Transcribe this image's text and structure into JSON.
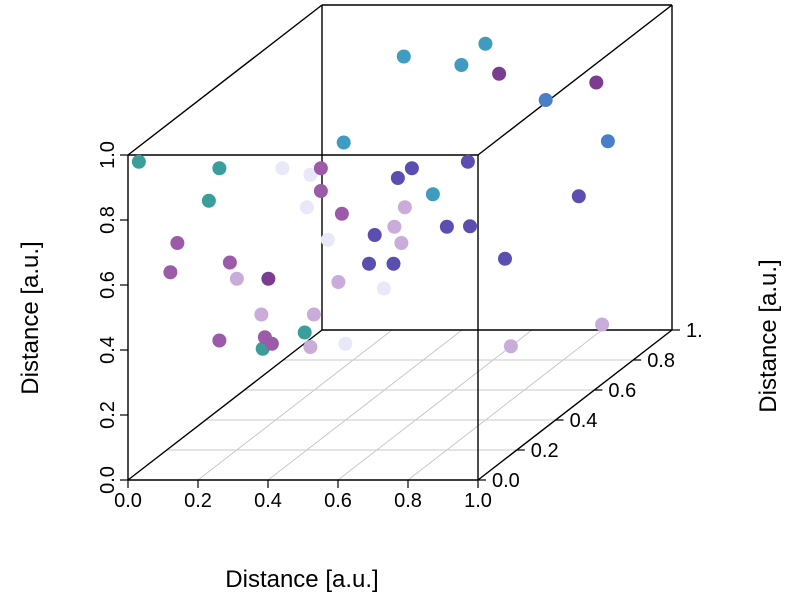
{
  "chart_data": {
    "type": "scatter",
    "dimensions": 3,
    "xlabel": "Distance [a.u.]",
    "ylabel": "Distance [a.u.]",
    "zlabel": "Distance [a.u.]",
    "xlim": [
      0,
      1
    ],
    "ylim": [
      0,
      1
    ],
    "zlim": [
      0,
      1
    ],
    "x_ticks": [
      "0.0",
      "0.2",
      "0.4",
      "0.6",
      "0.8",
      "1.0"
    ],
    "y_ticks": [
      "0.0",
      "0.2",
      "0.4",
      "0.6",
      "0.8",
      "1."
    ],
    "z_ticks": [
      "0.0",
      "0.2",
      "0.4",
      "0.6",
      "0.8",
      "1.0"
    ],
    "grid": true,
    "box": true,
    "color_scale": [
      "#e8e8f8",
      "#c9acda",
      "#9b5ba8",
      "#7a3d8f",
      "#5a4fb0",
      "#4a7fc8",
      "#3f9bbf",
      "#3a9e9a",
      "#4aa88a"
    ],
    "points": [
      {
        "x": 0.02,
        "y": 0.02,
        "z": 0.97,
        "color": "#3a9e9a"
      },
      {
        "x": 0.25,
        "y": 0.02,
        "z": 0.95,
        "color": "#3a9e9a"
      },
      {
        "x": 0.22,
        "y": 0.02,
        "z": 0.85,
        "color": "#3a9e9a"
      },
      {
        "x": 0.13,
        "y": 0.02,
        "z": 0.72,
        "color": "#9b5ba8"
      },
      {
        "x": 0.11,
        "y": 0.02,
        "z": 0.63,
        "color": "#9b5ba8"
      },
      {
        "x": 0.28,
        "y": 0.02,
        "z": 0.66,
        "color": "#9b5ba8"
      },
      {
        "x": 0.3,
        "y": 0.02,
        "z": 0.61,
        "color": "#c9acda"
      },
      {
        "x": 0.39,
        "y": 0.02,
        "z": 0.61,
        "color": "#7a3d8f"
      },
      {
        "x": 0.37,
        "y": 0.02,
        "z": 0.5,
        "color": "#c9acda"
      },
      {
        "x": 0.25,
        "y": 0.02,
        "z": 0.42,
        "color": "#9b5ba8"
      },
      {
        "x": 0.38,
        "y": 0.02,
        "z": 0.43,
        "color": "#9b5ba8"
      },
      {
        "x": 0.4,
        "y": 0.02,
        "z": 0.41,
        "color": "#9b5ba8"
      },
      {
        "x": 0.43,
        "y": 0.02,
        "z": 0.95,
        "color": "#e8e8f8"
      },
      {
        "x": 0.51,
        "y": 0.02,
        "z": 0.93,
        "color": "#e8e8f8"
      },
      {
        "x": 0.54,
        "y": 0.02,
        "z": 0.95,
        "color": "#9b5ba8"
      },
      {
        "x": 0.54,
        "y": 0.02,
        "z": 0.88,
        "color": "#9b5ba8"
      },
      {
        "x": 0.5,
        "y": 0.02,
        "z": 0.83,
        "color": "#e8e8f8"
      },
      {
        "x": 0.6,
        "y": 0.02,
        "z": 0.81,
        "color": "#9b5ba8"
      },
      {
        "x": 0.56,
        "y": 0.02,
        "z": 0.73,
        "color": "#e8e8f8"
      },
      {
        "x": 0.59,
        "y": 0.02,
        "z": 0.6,
        "color": "#c9acda"
      },
      {
        "x": 0.52,
        "y": 0.02,
        "z": 0.5,
        "color": "#c9acda"
      },
      {
        "x": 0.51,
        "y": 0.02,
        "z": 0.4,
        "color": "#c9acda"
      },
      {
        "x": 0.61,
        "y": 0.02,
        "z": 0.41,
        "color": "#e8e8f8"
      },
      {
        "x": 0.8,
        "y": 0.02,
        "z": 0.95,
        "color": "#5a4fb0"
      },
      {
        "x": 0.76,
        "y": 0.02,
        "z": 0.92,
        "color": "#5a4fb0"
      },
      {
        "x": 0.78,
        "y": 0.02,
        "z": 0.83,
        "color": "#c9acda"
      },
      {
        "x": 0.72,
        "y": 0.02,
        "z": 0.58,
        "color": "#e8e8f8"
      },
      {
        "x": 0.86,
        "y": 0.02,
        "z": 0.87,
        "color": "#3f9bbf"
      },
      {
        "x": 0.9,
        "y": 0.02,
        "z": 0.77,
        "color": "#5a4fb0"
      },
      {
        "x": 0.96,
        "y": 0.02,
        "z": 0.97,
        "color": "#5a4fb0"
      },
      {
        "x": 0.75,
        "y": 0.02,
        "z": 0.77,
        "color": "#c9acda"
      },
      {
        "x": 0.77,
        "y": 0.02,
        "z": 0.72,
        "color": "#c9acda"
      },
      {
        "x": 0.2,
        "y": 0.55,
        "z": 0.2,
        "color": "#3a9e9a"
      },
      {
        "x": 0.08,
        "y": 0.55,
        "z": 0.15,
        "color": "#3a9e9a"
      },
      {
        "x": 0.9,
        "y": 0.35,
        "z": 0.25,
        "color": "#c9acda"
      },
      {
        "x": 0.9,
        "y": 0.82,
        "z": 0.1,
        "color": "#c9acda"
      },
      {
        "x": 0.55,
        "y": 0.25,
        "z": 0.55,
        "color": "#5a4fb0"
      },
      {
        "x": 0.62,
        "y": 0.25,
        "z": 0.55,
        "color": "#5a4fb0"
      },
      {
        "x": 0.4,
        "y": 0.55,
        "z": 0.5,
        "color": "#5a4fb0"
      },
      {
        "x": 0.7,
        "y": 0.5,
        "z": 0.55,
        "color": "#5a4fb0"
      },
      {
        "x": 0.8,
        "y": 0.5,
        "z": 0.45,
        "color": "#5a4fb0"
      },
      {
        "x": 0.9,
        "y": 0.7,
        "z": 0.55,
        "color": "#5a4fb0"
      },
      {
        "x": 0.7,
        "y": 0.65,
        "z": 0.95,
        "color": "#7a3d8f"
      },
      {
        "x": 0.95,
        "y": 0.7,
        "z": 0.9,
        "color": "#7a3d8f"
      },
      {
        "x": 0.75,
        "y": 0.8,
        "z": 0.8,
        "color": "#4a7fc8"
      },
      {
        "x": 0.9,
        "y": 0.85,
        "z": 0.65,
        "color": "#4a7fc8"
      },
      {
        "x": 0.4,
        "y": 0.7,
        "z": 0.98,
        "color": "#3f9bbf"
      },
      {
        "x": 0.55,
        "y": 0.85,
        "z": 0.95,
        "color": "#3f9bbf"
      },
      {
        "x": 0.62,
        "y": 0.6,
        "z": 1.0,
        "color": "#3f9bbf"
      },
      {
        "x": 0.45,
        "y": 0.3,
        "z": 0.9,
        "color": "#3f9bbf"
      }
    ]
  }
}
